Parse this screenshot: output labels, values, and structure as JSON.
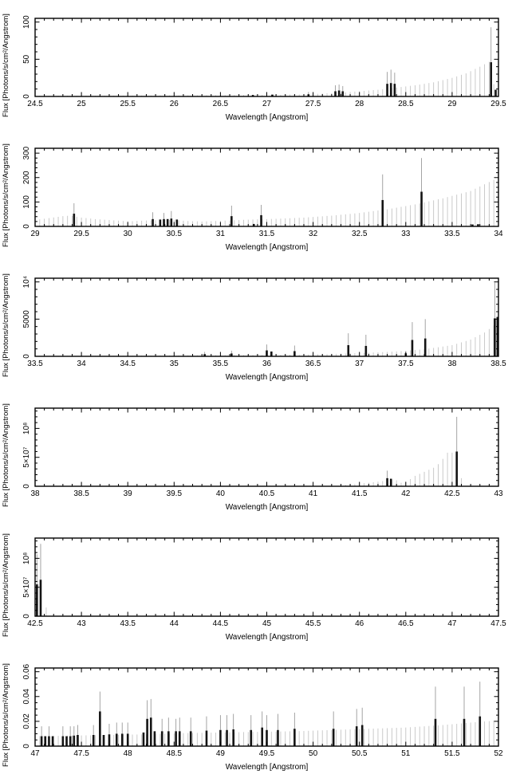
{
  "figure": {
    "xlabel": "Wavelength [Angstrom]",
    "ylabel": "Flux [Photons/s/cm²/Angstrom]",
    "colors": {
      "frame": "#000000",
      "model_comb": "#c4c4c4",
      "detected_bar": "#141414",
      "error_bar": "#9a9a9a"
    }
  },
  "chart_data": [
    {
      "type": "bar",
      "title": "",
      "xlabel": "Wavelength [Angstrom]",
      "ylabel": "Flux [Photons/s/cm²/Angstrom]",
      "xmin": 24.5,
      "xmax": 29.5,
      "ymin": 0,
      "ymax": 105,
      "xstep": 0.5,
      "xminor": 0.1,
      "yminor": 10,
      "comb_spacing": 0.05,
      "grid": false,
      "legend": "none",
      "yticks": [
        {
          "v": 0,
          "label": "0"
        },
        {
          "v": 50,
          "label": "50"
        },
        {
          "v": 100,
          "label": "100"
        }
      ],
      "envelope": [
        [
          24.5,
          1
        ],
        [
          25.5,
          1.2
        ],
        [
          26.3,
          1.5
        ],
        [
          26.8,
          2
        ],
        [
          27.2,
          2.5
        ],
        [
          27.5,
          3.2
        ],
        [
          27.8,
          5
        ],
        [
          28.0,
          7
        ],
        [
          28.2,
          9
        ],
        [
          28.4,
          12
        ],
        [
          28.6,
          15
        ],
        [
          28.8,
          19
        ],
        [
          29.0,
          25
        ],
        [
          29.15,
          31
        ],
        [
          29.3,
          40
        ],
        [
          29.42,
          48
        ],
        [
          29.46,
          6
        ],
        [
          29.5,
          3
        ]
      ],
      "gray_lines": [],
      "bars": [
        [
          26.85,
          2,
          0
        ],
        [
          27.06,
          2.5,
          0
        ],
        [
          27.45,
          3,
          6
        ],
        [
          27.74,
          7,
          15
        ],
        [
          27.78,
          8,
          16
        ],
        [
          27.82,
          7,
          14
        ],
        [
          28.3,
          17,
          33
        ],
        [
          28.34,
          18,
          36
        ],
        [
          28.38,
          17,
          32
        ],
        [
          29.42,
          46,
          93
        ],
        [
          29.47,
          9,
          0
        ]
      ]
    },
    {
      "type": "bar",
      "title": "",
      "xlabel": "Wavelength [Angstrom]",
      "ylabel": "Flux [Photons/s/cm²/Angstrom]",
      "xmin": 29,
      "xmax": 34,
      "ymin": 0,
      "ymax": 320,
      "xstep": 0.5,
      "xminor": 0.1,
      "yminor": 20,
      "comb_spacing": 0.05,
      "grid": false,
      "legend": "none",
      "yticks": [
        {
          "v": 0,
          "label": "0"
        },
        {
          "v": 100,
          "label": "100"
        },
        {
          "v": 200,
          "label": "200"
        },
        {
          "v": 300,
          "label": "300"
        }
      ],
      "envelope": [
        [
          29,
          26
        ],
        [
          29.15,
          34
        ],
        [
          29.3,
          42
        ],
        [
          29.38,
          44
        ],
        [
          29.5,
          36
        ],
        [
          29.65,
          30
        ],
        [
          29.8,
          26
        ],
        [
          30,
          21
        ],
        [
          30.2,
          24
        ],
        [
          30.35,
          26
        ],
        [
          30.5,
          26
        ],
        [
          30.65,
          22
        ],
        [
          30.8,
          20
        ],
        [
          31,
          23
        ],
        [
          31.2,
          26
        ],
        [
          31.4,
          29
        ],
        [
          31.6,
          31
        ],
        [
          31.9,
          36
        ],
        [
          32.2,
          44
        ],
        [
          32.5,
          55
        ],
        [
          32.8,
          70
        ],
        [
          33.1,
          90
        ],
        [
          33.4,
          115
        ],
        [
          33.7,
          145
        ],
        [
          34,
          200
        ]
      ],
      "gray_lines": [],
      "bars": [
        [
          29.42,
          52,
          95
        ],
        [
          30.27,
          30,
          58
        ],
        [
          30.35,
          28,
          0
        ],
        [
          30.39,
          30,
          55
        ],
        [
          30.43,
          30,
          0
        ],
        [
          30.47,
          32,
          63
        ],
        [
          30.53,
          28,
          0
        ],
        [
          31.12,
          42,
          85
        ],
        [
          31.36,
          10,
          0
        ],
        [
          31.44,
          46,
          88
        ],
        [
          32.75,
          108,
          213
        ],
        [
          33.17,
          142,
          280
        ],
        [
          33.72,
          8,
          0
        ],
        [
          33.78,
          9,
          0
        ]
      ]
    },
    {
      "type": "bar",
      "title": "",
      "xlabel": "Wavelength [Angstrom]",
      "ylabel": "Flux [Photons/s/cm²/Angstrom]",
      "xmin": 33.5,
      "xmax": 38.5,
      "ymin": 0,
      "ymax": 10500,
      "xstep": 0.5,
      "xminor": 0.1,
      "yminor": 1000,
      "comb_spacing": 0.05,
      "grid": false,
      "legend": "none",
      "yticks": [
        {
          "v": 0,
          "label": "0"
        },
        {
          "v": 5000,
          "label": "5000"
        },
        {
          "v": 10000,
          "label": "10⁴"
        }
      ],
      "envelope": [
        [
          33.5,
          60
        ],
        [
          34.5,
          90
        ],
        [
          35,
          115
        ],
        [
          35.5,
          145
        ],
        [
          36,
          185
        ],
        [
          36.4,
          240
        ],
        [
          36.8,
          350
        ],
        [
          37.1,
          480
        ],
        [
          37.4,
          660
        ],
        [
          37.7,
          950
        ],
        [
          38,
          1500
        ],
        [
          38.2,
          2250
        ],
        [
          38.35,
          3200
        ],
        [
          38.5,
          4600
        ]
      ],
      "gray_lines": [],
      "bars": [
        [
          35.33,
          300,
          600
        ],
        [
          35.62,
          380,
          760
        ],
        [
          36.0,
          800,
          1600
        ],
        [
          36.05,
          650,
          0
        ],
        [
          36.3,
          700,
          1450
        ],
        [
          36.88,
          1500,
          3100
        ],
        [
          37.07,
          1400,
          2900
        ],
        [
          37.5,
          400,
          0
        ],
        [
          37.57,
          2200,
          4600
        ],
        [
          37.71,
          2400,
          5000
        ],
        [
          38.46,
          5100,
          9900
        ],
        [
          38.49,
          5300,
          0
        ]
      ]
    },
    {
      "type": "bar",
      "title": "",
      "xlabel": "Wavelength [Angstrom]",
      "ylabel": "Flux [Photons/s/cm²/Angstrom]",
      "xmin": 38,
      "xmax": 43,
      "ymin": 0,
      "ymax": 135000000,
      "xstep": 0.5,
      "xminor": 0.1,
      "yminor": 10000000,
      "comb_spacing": 0.05,
      "grid": false,
      "legend": "none",
      "yticks": [
        {
          "v": 0,
          "label": "0"
        },
        {
          "v": 50000000,
          "label": "5×10⁷"
        },
        {
          "v": 100000000,
          "label": "10⁸"
        }
      ],
      "envelope": [
        [
          38,
          0
        ],
        [
          41.25,
          0
        ],
        [
          41.35,
          2500000
        ],
        [
          41.5,
          4500000
        ],
        [
          41.65,
          7000000
        ],
        [
          41.8,
          10000000
        ],
        [
          41.88,
          12000000
        ],
        [
          41.95,
          6000000
        ],
        [
          42.02,
          9000000
        ],
        [
          42.1,
          18000000
        ],
        [
          42.2,
          25000000
        ],
        [
          42.3,
          32000000
        ],
        [
          42.38,
          42000000
        ],
        [
          42.44,
          58000000
        ],
        [
          42.5,
          58000000
        ],
        [
          42.54,
          0
        ],
        [
          43,
          0
        ]
      ],
      "gray_lines": [
        [
          42.6,
          14000000
        ]
      ],
      "bars": [
        [
          41.8,
          14000000,
          27000000
        ],
        [
          41.84,
          13000000,
          0
        ],
        [
          42.55,
          60000000,
          120000000
        ]
      ]
    },
    {
      "type": "bar",
      "title": "",
      "xlabel": "Wavelength [Angstrom]",
      "ylabel": "Flux [Photons/s/cm²/Angstrom]",
      "xmin": 42.5,
      "xmax": 47.5,
      "ymin": 0,
      "ymax": 135000000,
      "xstep": 0.5,
      "xminor": 0.1,
      "yminor": 10000000,
      "comb_spacing": 0.05,
      "grid": false,
      "legend": "none",
      "yticks": [
        {
          "v": 0,
          "label": "0"
        },
        {
          "v": 50000000,
          "label": "5×10⁷"
        },
        {
          "v": 100000000,
          "label": "10⁸"
        }
      ],
      "envelope": [
        [
          42.5,
          0
        ],
        [
          47.5,
          0
        ]
      ],
      "gray_lines": [
        [
          42.62,
          15000000
        ]
      ],
      "bars": [
        [
          42.52,
          55000000,
          107000000
        ],
        [
          42.56,
          63000000,
          125000000
        ]
      ]
    },
    {
      "type": "bar",
      "title": "",
      "xlabel": "Wavelength [Angstrom]",
      "ylabel": "Flux [Photons/s/cm²/Angstrom]",
      "xmin": 47,
      "xmax": 52,
      "ymin": 0,
      "ymax": 0.063,
      "xstep": 0.5,
      "xminor": 0.1,
      "yminor": 0.005,
      "comb_spacing": 0.05,
      "grid": false,
      "legend": "none",
      "yticks": [
        {
          "v": 0,
          "label": "0"
        },
        {
          "v": 0.02,
          "label": "0.02"
        },
        {
          "v": 0.04,
          "label": "0.04"
        },
        {
          "v": 0.06,
          "label": "0.06"
        }
      ],
      "envelope": [
        [
          47,
          0.008
        ],
        [
          47.4,
          0.0085
        ],
        [
          47.8,
          0.009
        ],
        [
          48.2,
          0.0095
        ],
        [
          48.6,
          0.0105
        ],
        [
          49,
          0.011
        ],
        [
          49.4,
          0.0115
        ],
        [
          49.8,
          0.012
        ],
        [
          50.2,
          0.013
        ],
        [
          50.6,
          0.014
        ],
        [
          51,
          0.015
        ],
        [
          51.4,
          0.017
        ],
        [
          51.7,
          0.019
        ],
        [
          51.95,
          0.0205
        ],
        [
          52,
          0.0195
        ]
      ],
      "gray_lines": [],
      "bars": [
        [
          47.07,
          0.008,
          0.016
        ],
        [
          47.11,
          0.008,
          0
        ],
        [
          47.15,
          0.008,
          0.016
        ],
        [
          47.19,
          0.008,
          0
        ],
        [
          47.3,
          0.008,
          0.016
        ],
        [
          47.34,
          0.008,
          0
        ],
        [
          47.38,
          0.008,
          0.016
        ],
        [
          47.42,
          0.0085,
          0.016
        ],
        [
          47.46,
          0.009,
          0.017
        ],
        [
          47.63,
          0.009,
          0.017
        ],
        [
          47.7,
          0.028,
          0.044
        ],
        [
          47.74,
          0.009,
          0
        ],
        [
          47.8,
          0.0095,
          0.018
        ],
        [
          47.88,
          0.01,
          0.019
        ],
        [
          47.94,
          0.01,
          0.019
        ],
        [
          48.0,
          0.01,
          0.019
        ],
        [
          48.17,
          0.011,
          0
        ],
        [
          48.21,
          0.022,
          0.037
        ],
        [
          48.25,
          0.023,
          0.038
        ],
        [
          48.29,
          0.012,
          0
        ],
        [
          48.37,
          0.012,
          0.022
        ],
        [
          48.44,
          0.012,
          0.023
        ],
        [
          48.52,
          0.012,
          0.022
        ],
        [
          48.56,
          0.012,
          0.023
        ],
        [
          48.68,
          0.012,
          0.023
        ],
        [
          48.85,
          0.0125,
          0.024
        ],
        [
          49.0,
          0.013,
          0.025
        ],
        [
          49.07,
          0.013,
          0.025
        ],
        [
          49.14,
          0.0135,
          0.026
        ],
        [
          49.33,
          0.013,
          0.025
        ],
        [
          49.45,
          0.015,
          0.028
        ],
        [
          49.5,
          0.013,
          0.025
        ],
        [
          49.62,
          0.013,
          0.026
        ],
        [
          49.8,
          0.014,
          0.027
        ],
        [
          50.22,
          0.014,
          0.028
        ],
        [
          50.47,
          0.016,
          0.03
        ],
        [
          50.53,
          0.017,
          0.031
        ],
        [
          51.32,
          0.022,
          0.048
        ],
        [
          51.63,
          0.022,
          0.048
        ],
        [
          51.8,
          0.024,
          0.052
        ]
      ]
    }
  ]
}
